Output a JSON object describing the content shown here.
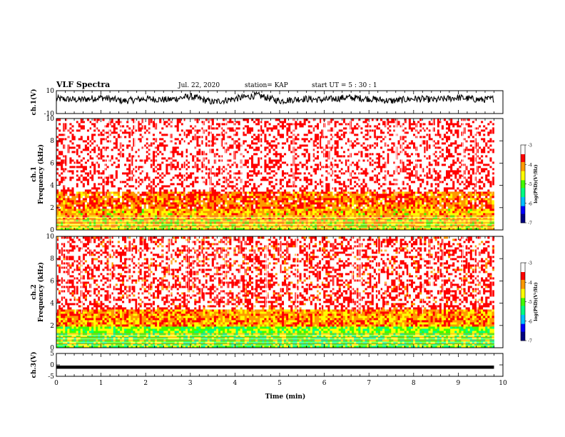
{
  "header": {
    "title": "VLF Spectra",
    "date": "Jul. 22, 2020",
    "station": "station= KAP",
    "start": "start UT = 5 : 30 : 1"
  },
  "colors": {
    "frame": "#000000",
    "waveform": "#000000",
    "colormap": [
      "#00007f",
      "#0000ff",
      "#00bfff",
      "#00ff80",
      "#3fff00",
      "#ffff00",
      "#ff9900",
      "#ff0000",
      "#ffffff"
    ]
  },
  "colorbar": {
    "label": "log(PSD)(V²/Hz)",
    "ticks": [
      "-3",
      "-4",
      "-5",
      "-6",
      "-7"
    ],
    "tick_values": [
      -3,
      -4,
      -5,
      -6,
      -7
    ],
    "range": [
      -7,
      -3
    ]
  },
  "chart_data": [
    {
      "type": "line",
      "id": "ch1-waveform",
      "ylabel": "ch.1(V)",
      "ylim": [
        -10,
        10
      ],
      "y_ticks": [
        "10",
        "-10"
      ],
      "y_tick_values": [
        10,
        -10
      ],
      "xlim": [
        0,
        10
      ],
      "description_of_values": "raw voltage waveform, fluctuating between about -4 and 7 V",
      "series": [
        {
          "x": [
            0,
            0.5,
            1,
            1.5,
            2,
            2.5,
            3,
            3.5,
            4,
            4.5,
            5,
            5.5,
            6,
            6.5,
            7,
            7.5,
            8,
            8.5,
            9,
            9.5,
            9.8
          ],
          "values": [
            3,
            2,
            4,
            1,
            3,
            2,
            5,
            0,
            3,
            6,
            1,
            3,
            2,
            4,
            3,
            1,
            3,
            2,
            4,
            2,
            3
          ]
        }
      ]
    },
    {
      "type": "heatmap",
      "id": "ch1-spectrogram",
      "ylabel": "ch.1\nFrequency (kHz)",
      "ylabel_line1": "ch.1",
      "ylabel_line2": "Frequency (kHz)",
      "ylim": [
        0,
        10
      ],
      "y_ticks": [
        "10",
        "8",
        "6",
        "4",
        "2",
        "0"
      ],
      "y_tick_values": [
        10,
        8,
        6,
        4,
        2,
        0
      ],
      "xlim": [
        0,
        10
      ],
      "data_end_min": 9.8,
      "band_levels": [
        {
          "fmin": 0,
          "fmax": 1,
          "log_psd": -4.5
        },
        {
          "fmin": 1,
          "fmax": 2,
          "log_psd": -4.3
        },
        {
          "fmin": 2,
          "fmax": 3.5,
          "log_psd": -3.9
        },
        {
          "fmin": 3.5,
          "fmax": 10,
          "log_psd": -3.3
        }
      ]
    },
    {
      "type": "heatmap",
      "id": "ch2-spectrogram",
      "ylabel": "ch.2\nFrequency (kHz)",
      "ylabel_line1": "ch.2",
      "ylabel_line2": "Frequency (kHz)",
      "ylim": [
        0,
        10
      ],
      "y_ticks": [
        "10",
        "8",
        "6",
        "4",
        "2",
        "0"
      ],
      "y_tick_values": [
        10,
        8,
        6,
        4,
        2,
        0
      ],
      "xlim": [
        0,
        10
      ],
      "data_end_min": 9.8,
      "band_levels": [
        {
          "fmin": 0,
          "fmax": 1,
          "log_psd": -5.0
        },
        {
          "fmin": 1,
          "fmax": 2,
          "log_psd": -4.9
        },
        {
          "fmin": 2,
          "fmax": 3.5,
          "log_psd": -4.1
        },
        {
          "fmin": 3.5,
          "fmax": 10,
          "log_psd": -3.4
        }
      ]
    },
    {
      "type": "line",
      "id": "ch3-waveform",
      "ylabel": "ch.3(V)",
      "ylim": [
        -5,
        5
      ],
      "y_ticks": [
        "5",
        "0",
        "-5"
      ],
      "y_tick_values": [
        5,
        0,
        -5
      ],
      "xlim": [
        0,
        10
      ],
      "xlabel": "Time (min)",
      "x_ticks": [
        "0",
        "1",
        "2",
        "3",
        "4",
        "5",
        "6",
        "7",
        "8",
        "9",
        "10"
      ],
      "x_tick_values": [
        0,
        1,
        2,
        3,
        4,
        5,
        6,
        7,
        8,
        9,
        10
      ],
      "series": [
        {
          "x": [
            0,
            9.8
          ],
          "values": [
            -1,
            -1
          ],
          "spread": [
            -1.7,
            -0.3
          ]
        }
      ]
    }
  ]
}
